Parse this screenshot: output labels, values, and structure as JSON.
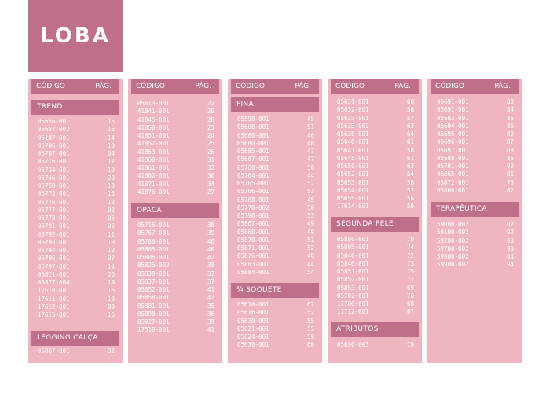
{
  "brand": {
    "logo_text": "LOBA"
  },
  "header": {
    "code_label": "CÓDIGO",
    "page_label": "PÁG."
  },
  "columns": [
    {
      "sections": [
        {
          "title": "TREND",
          "items": [
            [
              "05656-001",
              "15"
            ],
            [
              "05657-002",
              "16"
            ],
            [
              "05187-001",
              "14"
            ],
            [
              "05706-001",
              "10"
            ],
            [
              "05707-001",
              "04"
            ],
            [
              "05716-001",
              "17"
            ],
            [
              "05734-001",
              "19"
            ],
            [
              "05746-001",
              "20"
            ],
            [
              "05758-001",
              "13"
            ],
            [
              "05773-001",
              "13"
            ],
            [
              "05776-001",
              "12"
            ],
            [
              "05777-001",
              "08"
            ],
            [
              "05778-001",
              "05"
            ],
            [
              "05791-001",
              "06"
            ],
            [
              "05792-001",
              "11"
            ],
            [
              "05793-001",
              "18"
            ],
            [
              "05794-001",
              "12"
            ],
            [
              "05796-001",
              "07"
            ],
            [
              "05797-001",
              "14"
            ],
            [
              "05821-001",
              "20"
            ],
            [
              "05877-004",
              "19"
            ],
            [
              "17610-001",
              "16"
            ],
            [
              "17611-001",
              "18"
            ],
            [
              "17612-001",
              "09"
            ],
            [
              "17615-001",
              "16"
            ]
          ]
        },
        {
          "title": "LEGGING CALÇA",
          "items": [
            [
              "05867-001",
              "32"
            ]
          ]
        }
      ]
    },
    {
      "sections": [
        {
          "title": "",
          "items": [
            [
              "05613-001",
              "22"
            ],
            [
              "41841-001",
              "29"
            ],
            [
              "41845-001",
              "28"
            ],
            [
              "41850-001",
              "23"
            ],
            [
              "41851-001",
              "24"
            ],
            [
              "41852-001",
              "25"
            ],
            [
              "41853-001",
              "26"
            ],
            [
              "41860-001",
              "31"
            ],
            [
              "41861-001",
              "33"
            ],
            [
              "41862-001",
              "30"
            ],
            [
              "41871-001",
              "34"
            ],
            [
              "41876-001",
              "27"
            ]
          ]
        },
        {
          "title": "OPACA",
          "items": [
            [
              "05716-001",
              "38"
            ],
            [
              "05767-001",
              "39"
            ],
            [
              "05786-001",
              "40"
            ],
            [
              "05805-001",
              "40"
            ],
            [
              "05806-001",
              "42"
            ],
            [
              "05826-002",
              "38"
            ],
            [
              "05830-001",
              "37"
            ],
            [
              "05837-001",
              "37"
            ],
            [
              "05852-001",
              "41"
            ],
            [
              "05858-001",
              "42"
            ],
            [
              "05881-001",
              "35"
            ],
            [
              "05898-001",
              "36"
            ],
            [
              "05927-001",
              "39"
            ],
            [
              "17519-001",
              "41"
            ]
          ]
        }
      ]
    },
    {
      "sections": [
        {
          "title": "FINA",
          "items": [
            [
              "05590-001",
              "45"
            ],
            [
              "05600-001",
              "51"
            ],
            [
              "05660-001",
              "46"
            ],
            [
              "05680-001",
              "48"
            ],
            [
              "05685-001",
              "47"
            ],
            [
              "05687-001",
              "47"
            ],
            [
              "05760-001",
              "50"
            ],
            [
              "05764-001",
              "44"
            ],
            [
              "05765-001",
              "52"
            ],
            [
              "05766-001",
              "53"
            ],
            [
              "05768-001",
              "45"
            ],
            [
              "05770-002",
              "50"
            ],
            [
              "05796-001",
              "53"
            ],
            [
              "05867-001",
              "49"
            ],
            [
              "05868-001",
              "49"
            ],
            [
              "05870-001",
              "51"
            ],
            [
              "05871-001",
              "52"
            ],
            [
              "05876-001",
              "48"
            ],
            [
              "05883-001",
              "44"
            ],
            [
              "05884-001",
              "54"
            ]
          ]
        },
        {
          "title": "¾ SOQUETE",
          "items": [
            [
              "05610-001",
              "62"
            ],
            [
              "05616-001",
              "52"
            ],
            [
              "05620-001",
              "55"
            ],
            [
              "05621-001",
              "55"
            ],
            [
              "05624-001",
              "59"
            ],
            [
              "05630-001",
              "60"
            ]
          ]
        }
      ]
    },
    {
      "sections": [
        {
          "title": "",
          "items": [
            [
              "05631-001",
              "60"
            ],
            [
              "05632-001",
              "58"
            ],
            [
              "05633-001",
              "57"
            ],
            [
              "05635-002",
              "63"
            ],
            [
              "05638-001",
              "64"
            ],
            [
              "05640-001",
              "61"
            ],
            [
              "05641-001",
              "58"
            ],
            [
              "05645-001",
              "61"
            ],
            [
              "05650-001",
              "63"
            ],
            [
              "05652-001",
              "54"
            ],
            [
              "05653-001",
              "56"
            ],
            [
              "05654-001",
              "57"
            ],
            [
              "05655-001",
              "56"
            ],
            [
              "17614-001",
              "59"
            ]
          ]
        },
        {
          "title": "SEGUNDA PELE",
          "items": [
            [
              "05800-001",
              "70"
            ],
            [
              "05805-001",
              "74"
            ],
            [
              "05840-001",
              "72"
            ],
            [
              "05846-001",
              "73"
            ],
            [
              "05851-001",
              "75"
            ],
            [
              "05852-001",
              "71"
            ],
            [
              "05853-001",
              "69"
            ],
            [
              "05702-001",
              "76"
            ],
            [
              "17700-001",
              "68"
            ],
            [
              "17712-001",
              "67"
            ]
          ]
        },
        {
          "title": "ATRIBUTOS",
          "items": [
            [
              "05690-003",
              "79"
            ]
          ]
        }
      ]
    },
    {
      "sections": [
        {
          "title": "",
          "items": [
            [
              "05691-001",
              "83"
            ],
            [
              "05692-001",
              "84"
            ],
            [
              "05693-001",
              "85"
            ],
            [
              "05694-001",
              "86"
            ],
            [
              "05695-001",
              "80"
            ],
            [
              "05696-001",
              "87"
            ],
            [
              "05697-001",
              "88"
            ],
            [
              "05698-001",
              "85"
            ],
            [
              "05701-001",
              "90"
            ],
            [
              "05865-001",
              "81"
            ],
            [
              "05872-001",
              "78"
            ],
            [
              "05806-001",
              "82"
            ]
          ]
        },
        {
          "title": "TERAPÊUTICA",
          "items": [
            [
              "59000-002",
              "92"
            ],
            [
              "59100-002",
              "92"
            ],
            [
              "59200-002",
              "93"
            ],
            [
              "59700-002",
              "93"
            ],
            [
              "59800-002",
              "94"
            ],
            [
              "59900-002",
              "94"
            ]
          ]
        }
      ]
    }
  ]
}
